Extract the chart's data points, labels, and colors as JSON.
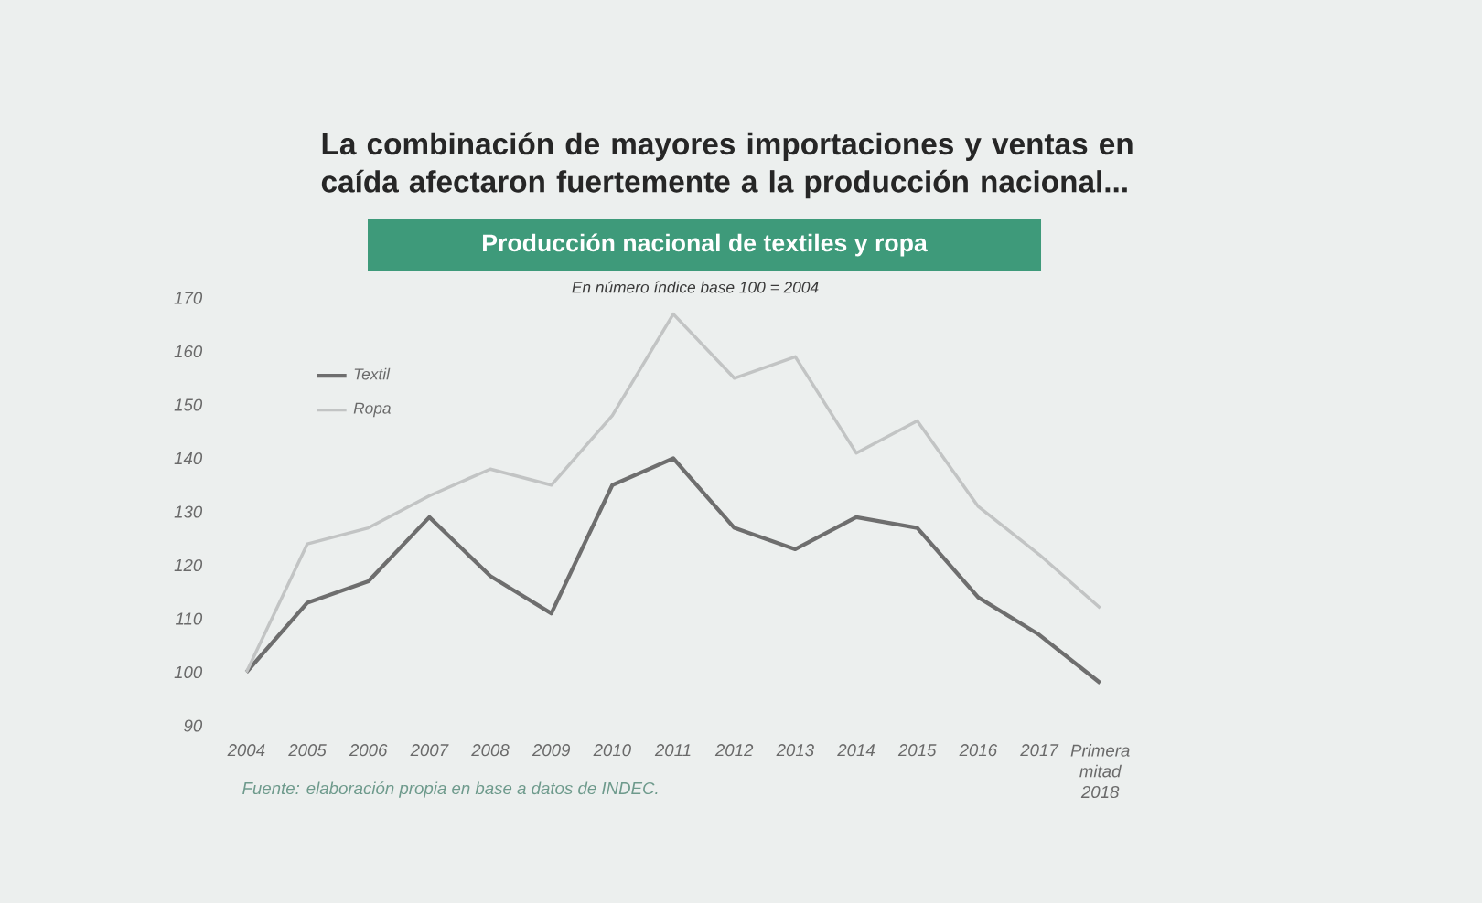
{
  "chart_data": {
    "type": "line",
    "title": "La combinación de mayores importaciones y ventas en caída afectaron fuertemente a la producción nacional...",
    "subtitle": "Producción nacional de textiles y ropa",
    "annotations": [
      "En número índice base 100 = 2004",
      "Fuente: elaboración propia en base a datos de INDEC."
    ],
    "categories": [
      "2004",
      "2005",
      "2006",
      "2007",
      "2008",
      "2009",
      "2010",
      "2011",
      "2012",
      "2013",
      "2014",
      "2015",
      "2016",
      "2017",
      "Primera mitad 2018"
    ],
    "series": [
      {
        "name": "Textil",
        "color": "#6e6e6e",
        "values": [
          100,
          113,
          117,
          129,
          118,
          111,
          135,
          140,
          127,
          123,
          129,
          127,
          114,
          107,
          98
        ]
      },
      {
        "name": "Ropa",
        "color": "#c2c4c4",
        "values": [
          100,
          124,
          127,
          133,
          138,
          135,
          148,
          167,
          155,
          159,
          141,
          147,
          131,
          122,
          112
        ]
      }
    ],
    "ylim": [
      90,
      170
    ],
    "yticks": [
      90,
      100,
      110,
      120,
      130,
      140,
      150,
      160,
      170
    ],
    "legend": "top left"
  }
}
